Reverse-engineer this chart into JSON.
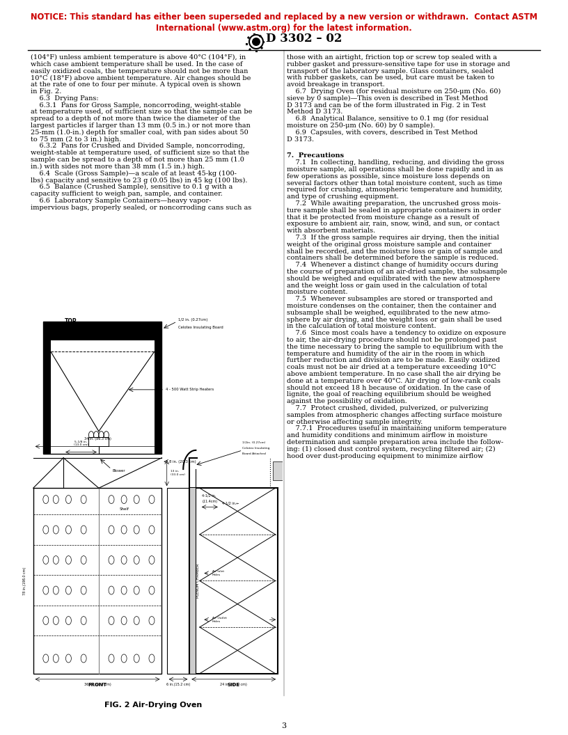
{
  "notice_line1": "NOTICE: This standard has either been superseded and replaced by a new version or withdrawn.  Contact ASTM",
  "notice_line2": "International (www.astm.org) for the latest information.",
  "notice_color": "#cc0000",
  "header_text": "D 3302 – 02",
  "page_number": "3",
  "fig_caption": "FIG. 2 Air-Drying Oven",
  "background_color": "#ffffff"
}
